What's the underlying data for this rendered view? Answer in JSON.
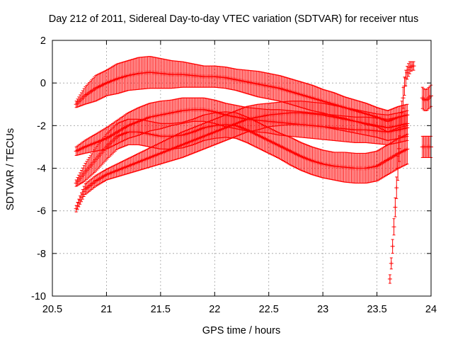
{
  "chart_data": {
    "type": "line",
    "title": "Day 212 of 2011, Sidereal Day-to-day VTEC variation (SDTVAR) for receiver ntus",
    "xlabel": "GPS time / hours",
    "ylabel": "SDTVAR / TECUs",
    "xlim": [
      20.5,
      24
    ],
    "ylim": [
      -10,
      2
    ],
    "x_ticks": [
      20.5,
      21,
      21.5,
      22,
      22.5,
      23,
      23.5,
      24
    ],
    "y_ticks": [
      -10,
      -8,
      -6,
      -4,
      -2,
      0,
      2
    ],
    "grid": true,
    "legend": "none",
    "series_color": "#ff0000",
    "error_bars": true,
    "series": [
      {
        "x": [
          20.72,
          20.8,
          20.9,
          21.0,
          21.1,
          21.2,
          21.3,
          21.4,
          21.5,
          21.6,
          21.7,
          21.8,
          21.9,
          22.0,
          22.1,
          22.2,
          22.3,
          22.4,
          22.5,
          22.6,
          22.7,
          22.8,
          22.9,
          23.0,
          23.1,
          23.2,
          23.3,
          23.4,
          23.5,
          23.6,
          23.7,
          23.78
        ],
        "y": [
          -1.0,
          -0.6,
          -0.25,
          0.0,
          0.2,
          0.35,
          0.45,
          0.5,
          0.45,
          0.4,
          0.4,
          0.35,
          0.3,
          0.3,
          0.25,
          0.15,
          0.05,
          -0.05,
          -0.15,
          -0.25,
          -0.4,
          -0.55,
          -0.7,
          -0.85,
          -1.0,
          -1.15,
          -1.3,
          -1.45,
          -1.6,
          -1.8,
          -1.6,
          -1.5
        ],
        "err": [
          0.15,
          0.4,
          0.6,
          0.6,
          0.7,
          0.7,
          0.75,
          0.75,
          0.7,
          0.65,
          0.6,
          0.55,
          0.5,
          0.5,
          0.5,
          0.5,
          0.55,
          0.6,
          0.6,
          0.6,
          0.6,
          0.6,
          0.6,
          0.55,
          0.55,
          0.5,
          0.5,
          0.5,
          0.45,
          0.5,
          0.5,
          0.5
        ]
      },
      {
        "x": [
          20.72,
          20.8,
          20.9,
          21.0,
          21.1,
          21.2,
          21.3,
          21.4,
          21.5,
          21.6,
          21.7,
          21.8,
          21.9,
          22.0,
          22.1,
          22.2,
          22.3,
          22.4,
          22.5,
          22.6,
          22.7,
          22.8,
          22.9,
          23.0,
          23.1,
          23.2,
          23.3,
          23.4,
          23.5,
          23.6,
          23.7,
          23.78
        ],
        "y": [
          -3.2,
          -3.0,
          -2.8,
          -2.6,
          -2.3,
          -2.0,
          -1.8,
          -1.6,
          -1.5,
          -1.4,
          -1.3,
          -1.25,
          -1.25,
          -1.35,
          -1.5,
          -1.6,
          -1.7,
          -1.75,
          -1.8,
          -1.85,
          -1.9,
          -1.95,
          -2.0,
          -2.05,
          -2.1,
          -2.15,
          -2.2,
          -2.2,
          -2.25,
          -2.3,
          -2.2,
          -2.1
        ],
        "err": [
          0.2,
          0.3,
          0.4,
          0.5,
          0.55,
          0.6,
          0.65,
          0.65,
          0.65,
          0.6,
          0.6,
          0.55,
          0.55,
          0.55,
          0.55,
          0.55,
          0.55,
          0.55,
          0.55,
          0.6,
          0.6,
          0.6,
          0.6,
          0.6,
          0.6,
          0.6,
          0.6,
          0.6,
          0.6,
          0.6,
          0.6,
          0.6
        ]
      },
      {
        "x": [
          20.72,
          20.8,
          20.9,
          21.0,
          21.1,
          21.2,
          21.3,
          21.4,
          21.5,
          21.6,
          21.7,
          21.8,
          21.9,
          22.0,
          22.1,
          22.2,
          22.3,
          22.4,
          22.5,
          22.6,
          22.7,
          22.8,
          22.9,
          23.0,
          23.1,
          23.2,
          23.3,
          23.4,
          23.5,
          23.6,
          23.7,
          23.78
        ],
        "y": [
          -4.7,
          -4.2,
          -3.6,
          -3.0,
          -2.5,
          -2.3,
          -2.3,
          -2.4,
          -2.5,
          -2.5,
          -2.45,
          -2.3,
          -2.1,
          -2.0,
          -1.95,
          -2.0,
          -2.2,
          -2.45,
          -2.7,
          -2.95,
          -3.2,
          -3.45,
          -3.65,
          -3.8,
          -3.9,
          -3.95,
          -4.0,
          -4.0,
          -3.9,
          -3.6,
          -3.3,
          -3.1
        ],
        "err": [
          0.15,
          0.4,
          0.55,
          0.6,
          0.6,
          0.6,
          0.6,
          0.6,
          0.6,
          0.6,
          0.6,
          0.6,
          0.6,
          0.6,
          0.6,
          0.6,
          0.6,
          0.6,
          0.6,
          0.6,
          0.65,
          0.65,
          0.65,
          0.65,
          0.65,
          0.7,
          0.7,
          0.7,
          0.7,
          0.7,
          0.7,
          0.7
        ]
      },
      {
        "x": [
          20.72,
          20.8,
          20.9,
          21.0,
          21.1,
          21.2,
          21.3,
          21.4,
          21.5,
          21.6,
          21.7,
          21.8,
          21.9,
          22.0,
          22.1,
          22.2,
          22.3,
          22.4,
          22.5,
          22.6,
          22.7,
          22.8,
          22.9,
          23.0,
          23.1,
          23.2,
          23.3,
          23.4,
          23.5,
          23.6,
          23.7,
          23.78
        ],
        "y": [
          -5.9,
          -5.0,
          -4.6,
          -4.3,
          -4.1,
          -3.9,
          -3.7,
          -3.5,
          -3.3,
          -3.1,
          -2.9,
          -2.7,
          -2.5,
          -2.3,
          -2.1,
          -1.9,
          -1.7,
          -1.6,
          -1.5,
          -1.45,
          -1.4,
          -1.4,
          -1.45,
          -1.5,
          -1.6,
          -1.7,
          -1.8,
          -1.9,
          -2.0,
          -2.1,
          -2.0,
          -1.9
        ],
        "err": [
          0.15,
          0.25,
          0.25,
          0.25,
          0.3,
          0.35,
          0.4,
          0.45,
          0.5,
          0.55,
          0.6,
          0.6,
          0.6,
          0.6,
          0.6,
          0.6,
          0.6,
          0.6,
          0.55,
          0.55,
          0.55,
          0.55,
          0.55,
          0.55,
          0.55,
          0.55,
          0.55,
          0.55,
          0.55,
          0.6,
          0.6,
          0.6
        ]
      },
      {
        "x": [
          23.62,
          23.64,
          23.66,
          23.68,
          23.7,
          23.72,
          23.74,
          23.76,
          23.78,
          23.8,
          23.82,
          23.84
        ],
        "y": [
          -9.2,
          -8.0,
          -6.5,
          -5.0,
          -3.5,
          -2.0,
          -0.8,
          0.1,
          0.5,
          0.7,
          0.8,
          0.8
        ],
        "err": [
          0.2,
          0.3,
          0.4,
          0.5,
          0.6,
          0.6,
          0.5,
          0.4,
          0.3,
          0.3,
          0.2,
          0.2
        ]
      },
      {
        "x": [
          23.92,
          23.94,
          23.96,
          23.98,
          24.0
        ],
        "y": [
          -0.7,
          -0.8,
          -0.8,
          -0.7,
          -0.6
        ],
        "err": [
          0.5,
          0.5,
          0.5,
          0.5,
          0.5
        ]
      },
      {
        "x": [
          23.92,
          23.94,
          23.96,
          23.98,
          24.0
        ],
        "y": [
          -3.0,
          -3.0,
          -3.0,
          -3.0,
          -3.0
        ],
        "err": [
          0.5,
          0.5,
          0.5,
          0.5,
          0.5
        ]
      }
    ]
  }
}
